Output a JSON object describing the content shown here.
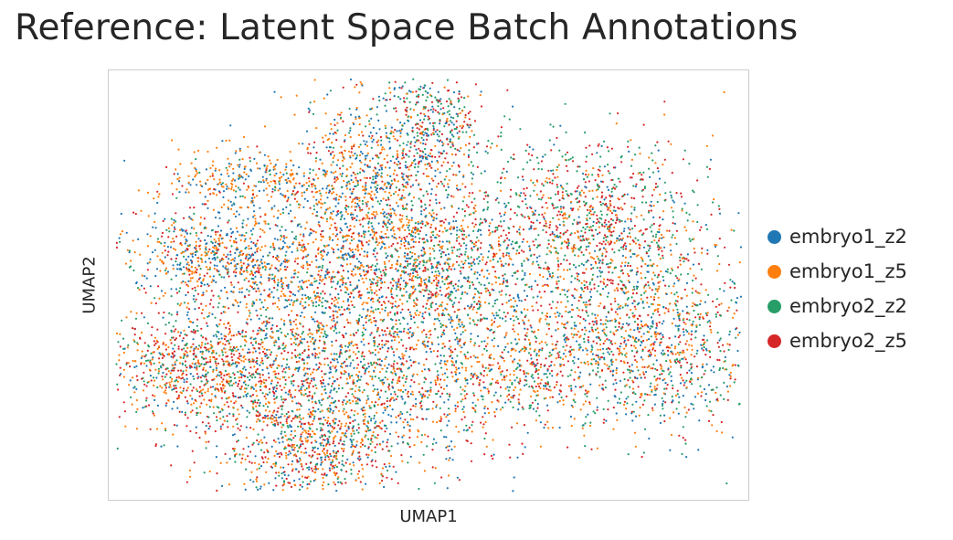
{
  "chart_data": {
    "type": "scatter",
    "title": "Reference: Latent Space Batch Annotations",
    "xlabel": "UMAP1",
    "ylabel": "UMAP2",
    "grid": false,
    "legend_position": "right",
    "series": [
      {
        "name": "embryo1_z2",
        "color": "#1f77b4"
      },
      {
        "name": "embryo1_z5",
        "color": "#ff7f0e"
      },
      {
        "name": "embryo2_z2",
        "color": "#279e68"
      },
      {
        "name": "embryo2_z5",
        "color": "#d62728"
      }
    ]
  }
}
